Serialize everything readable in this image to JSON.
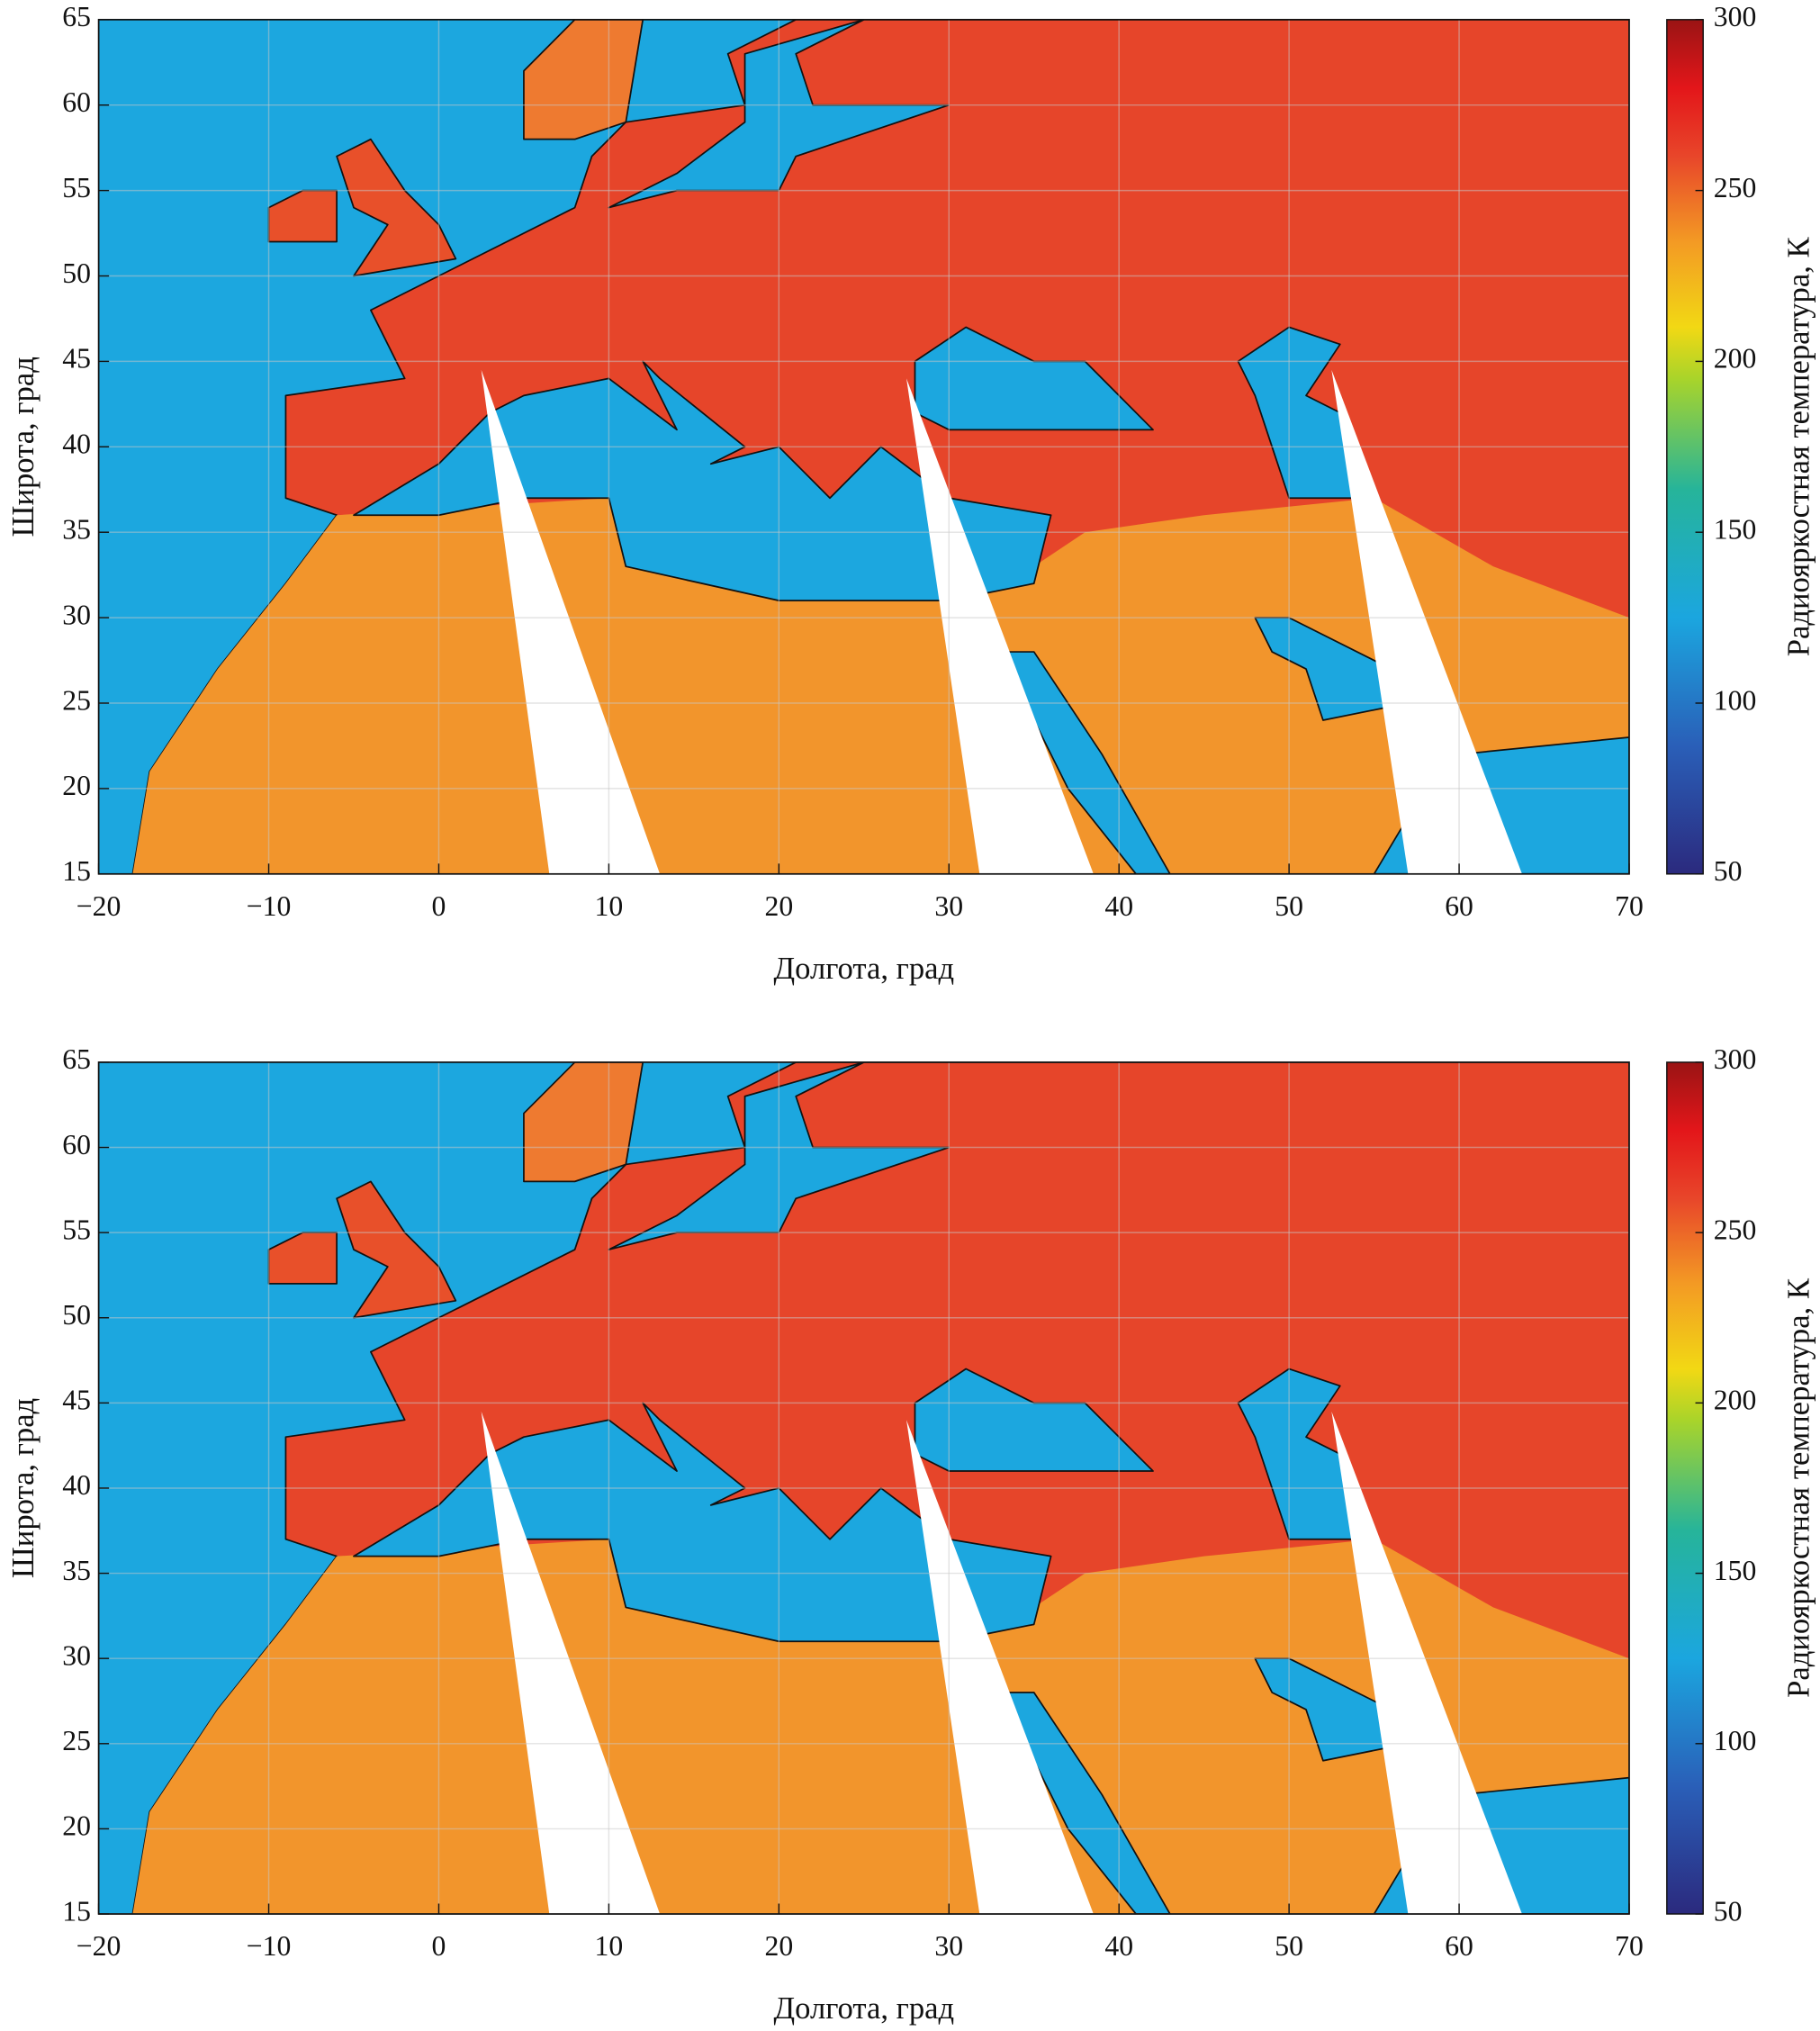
{
  "chart_data": [
    {
      "type": "heatmap",
      "xlabel": "Долгота, град",
      "ylabel": "Широта, град",
      "xlim": [
        -20,
        70
      ],
      "ylim": [
        15,
        65
      ],
      "xticks": [
        {
          "value": -20,
          "label": "−20"
        },
        {
          "value": -10,
          "label": "−10"
        },
        0,
        10,
        20,
        30,
        40,
        50,
        60,
        70
      ],
      "yticks": [
        15,
        20,
        25,
        30,
        35,
        40,
        45,
        50,
        55,
        60,
        65
      ],
      "grid": true,
      "colorbar": {
        "label": "Радиояркостная температура, К",
        "lim": [
          50,
          300
        ],
        "ticks": [
          50,
          100,
          150,
          200,
          250,
          300
        ]
      }
    },
    {
      "type": "heatmap",
      "xlabel": "Долгота, град",
      "ylabel": "Широта, град",
      "xlim": [
        -20,
        70
      ],
      "ylim": [
        15,
        65
      ],
      "xticks": [
        {
          "value": -20,
          "label": "−20"
        },
        {
          "value": -10,
          "label": "−10"
        },
        0,
        10,
        20,
        30,
        40,
        50,
        60,
        70
      ],
      "yticks": [
        15,
        20,
        25,
        30,
        35,
        40,
        45,
        50,
        55,
        60,
        65
      ],
      "grid": true,
      "colorbar": {
        "label": "Радиояркостная температура, К",
        "lim": [
          50,
          300
        ],
        "ticks": [
          50,
          100,
          150,
          200,
          250,
          300
        ]
      }
    }
  ]
}
